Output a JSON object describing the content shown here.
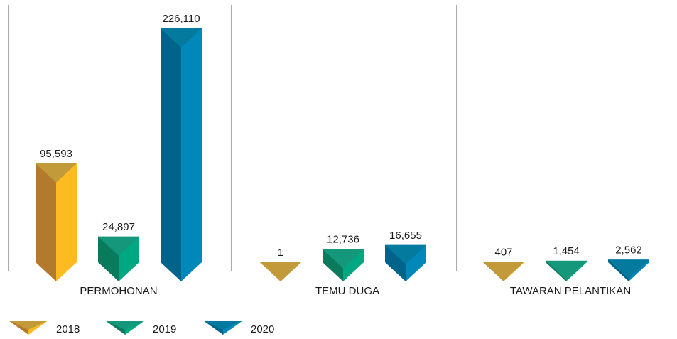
{
  "chart_data": {
    "type": "bar",
    "categories": [
      "PERMOHONAN",
      "TEMU DUGA",
      "TAWARAN PELANTIKAN"
    ],
    "series": [
      {
        "name": "2018",
        "values": [
          95593,
          1,
          407
        ],
        "labels": [
          "95,593",
          "1",
          "407"
        ]
      },
      {
        "name": "2019",
        "values": [
          24897,
          12736,
          1454
        ],
        "labels": [
          "24,897",
          "12,736",
          "1,454"
        ]
      },
      {
        "name": "2020",
        "values": [
          226110,
          16655,
          2562
        ],
        "labels": [
          "226,110",
          "16,655",
          "2,562"
        ]
      }
    ],
    "title": "",
    "xlabel": "",
    "ylabel": "",
    "legend_position": "bottom-left",
    "grid": false,
    "colors": {
      "2018": {
        "dark": "#b37a2e",
        "light": "#fdbb22",
        "top": "#c29a3a"
      },
      "2019": {
        "dark": "#0a7a5c",
        "light": "#00a882",
        "top": "#14977a"
      },
      "2020": {
        "dark": "#00648a",
        "light": "#0088bb",
        "top": "#047a9f"
      },
      "divider": "#555555"
    }
  }
}
